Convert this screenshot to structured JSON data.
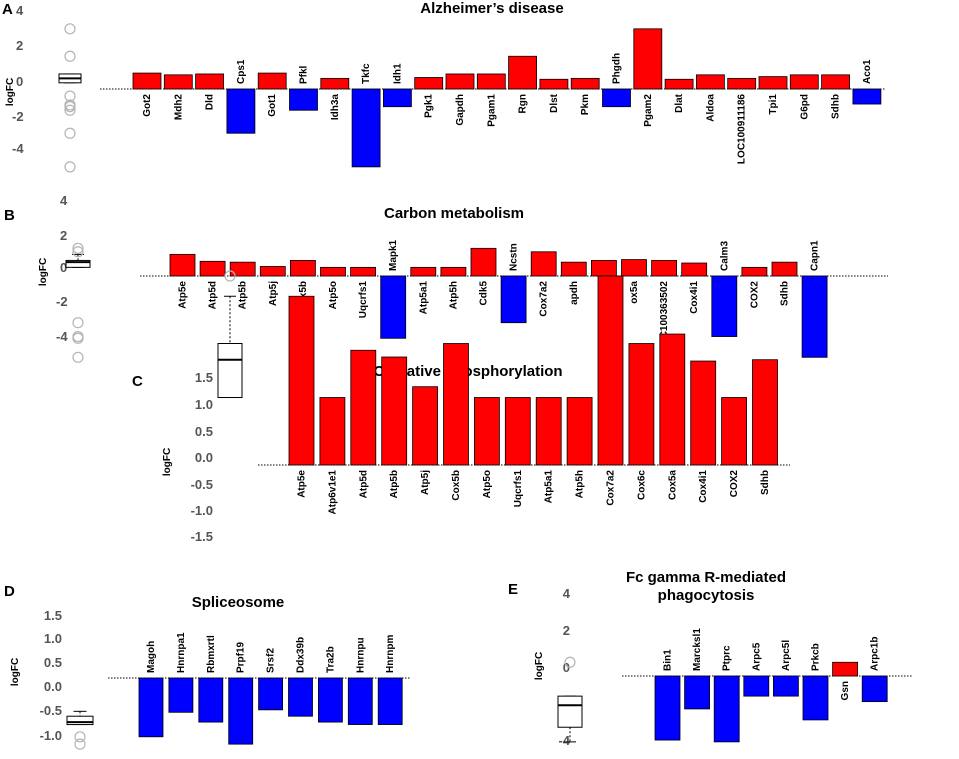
{
  "figure": {
    "y_axis_label": "logFC",
    "colors": {
      "up": "#ff0000",
      "down": "#0000ff",
      "outline": "#000000",
      "outlier": "#b4b4b4",
      "tick_text": "#555555"
    }
  },
  "chart_data": [
    {
      "panel": "A",
      "type": "bar",
      "title": "Alzheimer’s disease",
      "ylabel": "logFC",
      "ylim": [
        -4.6,
        4
      ],
      "yticks": [
        "4",
        "2",
        "0",
        "-2",
        "-4"
      ],
      "categories": [
        "Got2",
        "Mdh2",
        "Dld",
        "Cps1",
        "Got1",
        "Pfkl",
        "Idh3a",
        "Tkfc",
        "Idh1",
        "Pgk1",
        "Gapdh",
        "Pgam1",
        "Rgn",
        "Dlst",
        "Pkm",
        "Phgdh",
        "Pgam2",
        "Dlat",
        "Aldoa",
        "LOC100911186",
        "Tpi1",
        "G6pd",
        "Sdhb",
        "Aco1"
      ],
      "values": [
        0.9,
        0.8,
        0.85,
        -2.5,
        0.9,
        -1.2,
        0.6,
        -4.4,
        -1.0,
        0.65,
        0.85,
        0.85,
        1.85,
        0.55,
        0.6,
        -1.0,
        3.4,
        0.55,
        0.8,
        0.6,
        0.7,
        0.8,
        0.8,
        -0.85
      ],
      "boxplot": {
        "q1": 0.35,
        "median": 0.6,
        "q3": 0.85,
        "whisker_low": 0.35,
        "whisker_high": 0.85,
        "outliers": [
          3.4,
          1.85,
          -0.4,
          -0.9,
          -1.0,
          -1.2,
          -2.5,
          -4.4
        ]
      }
    },
    {
      "panel": "B",
      "type": "bar",
      "title": "Carbon metabolism",
      "ylabel": "logFC",
      "ylim": [
        -4.8,
        4
      ],
      "yticks": [
        "4",
        "2",
        "0",
        "-2",
        "-4"
      ],
      "categories": [
        "Atp5e",
        "Atp5d",
        "Atp5b",
        "Atp5j",
        "Cox5b",
        "Atp5o",
        "Uqcrfs1",
        "Mapk1",
        "Atp5a1",
        "Atp5h",
        "Cdk5",
        "Ncstn",
        "Cox7a2",
        "apdh",
        "ox6c",
        "ox5a",
        "LOC100363502",
        "Cox4i1",
        "Calm3",
        "COX2",
        "Sdhb",
        "Capn1"
      ],
      "values": [
        1.25,
        0.85,
        0.8,
        0.55,
        0.9,
        0.5,
        0.5,
        -3.6,
        0.5,
        0.5,
        1.6,
        -2.7,
        1.4,
        0.8,
        0.9,
        0.95,
        0.9,
        0.75,
        -3.5,
        0.5,
        0.8,
        -4.7
      ],
      "boxplot": {
        "q1": 0.5,
        "median": 0.8,
        "q3": 0.9,
        "whisker_low": 0.5,
        "whisker_high": 1.25,
        "outliers": [
          1.6,
          1.4,
          -2.7,
          -3.5,
          -3.6,
          -4.7
        ]
      }
    },
    {
      "panel": "C",
      "type": "bar",
      "title": "Oxidative phosphorylation",
      "ylabel": "logFC",
      "ylim": [
        -1.5,
        1.5
      ],
      "yticks": [
        "1.5",
        "1.0",
        "0.5",
        "0.0",
        "-0.5",
        "-1.0",
        "-1.5"
      ],
      "categories": [
        "Atp5e",
        "Atp6v1e1",
        "Atp5d",
        "Atp5b",
        "Atp5j",
        "Cox5b",
        "Atp5o",
        "Uqcrfs1",
        "Atp5a1",
        "Atp5h",
        "Cox7a2",
        "Cox6c",
        "Cox5a",
        "Cox4i1",
        "COX2",
        "Sdhb"
      ],
      "values": [
        1.25,
        0.5,
        0.85,
        0.8,
        0.58,
        0.9,
        0.5,
        0.5,
        0.5,
        0.5,
        1.4,
        0.9,
        0.97,
        0.77,
        0.5,
        0.78
      ],
      "boxplot": {
        "q1": 0.5,
        "median": 0.78,
        "q3": 0.9,
        "whisker_low": 0.5,
        "whisker_high": 1.25,
        "outliers": [
          1.4
        ]
      }
    },
    {
      "panel": "D",
      "type": "bar",
      "title": "Spliceosome",
      "ylabel": "logFC",
      "ylim": [
        -1.5,
        1.5
      ],
      "yticks": [
        "1.5",
        "1.0",
        "0.5",
        "0.0",
        "-0.5",
        "-1.0"
      ],
      "categories": [
        "Magoh",
        "Hnrnpa1",
        "Rbmxrtl",
        "Prpf19",
        "Srsf2",
        "Ddx39b",
        "Tra2b",
        "Hnrnpu",
        "Hnrnpm"
      ],
      "values": [
        -1.2,
        -0.7,
        -0.9,
        -1.35,
        -0.65,
        -0.78,
        -0.9,
        -0.95,
        -0.95
      ],
      "boxplot": {
        "q1": -0.95,
        "median": -0.9,
        "q3": -0.78,
        "whisker_low": -0.95,
        "whisker_high": -0.68,
        "outliers": [
          -1.2,
          -1.35
        ]
      }
    },
    {
      "panel": "E",
      "type": "bar",
      "title": "Fc gamma R-mediated phagocytosis",
      "title_lines": [
        "Fc gamma R-mediated",
        "phagocytosis"
      ],
      "ylabel": "logFC",
      "ylim": [
        -4,
        4
      ],
      "yticks": [
        "4",
        "2",
        "0",
        "-2",
        "-4"
      ],
      "categories": [
        "Bin1",
        "Marcksl1",
        "Ptprc",
        "Arpc5",
        "Arpc5l",
        "Prkcb",
        "Gsn",
        "Arpc1b"
      ],
      "values": [
        -3.5,
        -1.8,
        -3.6,
        -1.1,
        -1.1,
        -2.4,
        0.75,
        -1.4
      ],
      "boxplot": {
        "q1": -2.8,
        "median": -1.6,
        "q3": -1.1,
        "whisker_low": -3.6,
        "whisker_high": -1.1,
        "outliers": [
          0.75
        ]
      }
    }
  ]
}
